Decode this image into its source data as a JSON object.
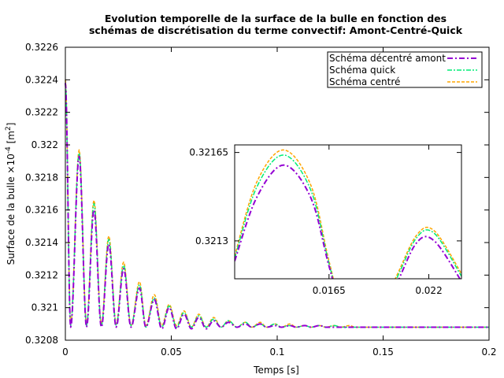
{
  "chart_data": {
    "type": "line",
    "title": [
      "Evolution temporelle de la surface de la bulle en fonction des",
      "schémas de discrétisation du terme convectif: Amont-Centré-Quick"
    ],
    "xlabel": "Temps [s]",
    "ylabel_base": "Surface de la bulle ×10",
    "ylabel_exp": "-4",
    "ylabel_unit_open": " [m",
    "ylabel_unit_exp": "2",
    "ylabel_unit_close": "]",
    "xlim": [
      0,
      0.2
    ],
    "ylim": [
      0.3208,
      0.3226
    ],
    "x_ticks": [
      {
        "value": 0,
        "label": "0"
      },
      {
        "value": 0.05,
        "label": "0.05"
      },
      {
        "value": 0.1,
        "label": "0.1"
      },
      {
        "value": 0.15,
        "label": "0.15"
      },
      {
        "value": 0.2,
        "label": "0.2"
      }
    ],
    "y_ticks": [
      {
        "value": 0.3208,
        "label": "0.3208"
      },
      {
        "value": 0.321,
        "label": "0.321"
      },
      {
        "value": 0.3212,
        "label": "0.3212"
      },
      {
        "value": 0.3214,
        "label": "0.3214"
      },
      {
        "value": 0.3216,
        "label": "0.3216"
      },
      {
        "value": 0.3218,
        "label": "0.3218"
      },
      {
        "value": 0.322,
        "label": "0.322"
      },
      {
        "value": 0.3222,
        "label": "0.3222"
      },
      {
        "value": 0.3224,
        "label": "0.3224"
      },
      {
        "value": 0.3226,
        "label": "0.3226"
      }
    ],
    "grid": false,
    "legend_position": "top-right",
    "series": [
      {
        "name": "Schéma décentré amont",
        "color": "#9400d3",
        "dash": "7,3,2,3",
        "final_value": 0.32088,
        "peaks": [
          [
            0.0065,
            0.32193
          ],
          [
            0.0135,
            0.3216
          ],
          [
            0.0205,
            0.32139
          ],
          [
            0.0275,
            0.32124
          ],
          [
            0.035,
            0.32112
          ],
          [
            0.042,
            0.32105
          ],
          [
            0.049,
            0.321
          ],
          [
            0.056,
            0.32096
          ],
          [
            0.063,
            0.32094
          ],
          [
            0.07,
            0.32092
          ],
          [
            0.077,
            0.32091
          ],
          [
            0.085,
            0.3209
          ],
          [
            0.092,
            0.3209
          ],
          [
            0.099,
            0.32089
          ],
          [
            0.106,
            0.32089
          ],
          [
            0.113,
            0.32089
          ],
          [
            0.12,
            0.32089
          ],
          [
            0.127,
            0.32088
          ],
          [
            0.134,
            0.32088
          ],
          [
            0.141,
            0.32088
          ]
        ],
        "troughs": [
          [
            0.0,
            0.32238
          ],
          [
            0.0025,
            0.32088
          ],
          [
            0.01,
            0.32088
          ],
          [
            0.017,
            0.32088
          ],
          [
            0.024,
            0.32088
          ],
          [
            0.031,
            0.32088
          ],
          [
            0.038,
            0.32088
          ],
          [
            0.0455,
            0.32087
          ],
          [
            0.0525,
            0.32087
          ],
          [
            0.0595,
            0.32087
          ],
          [
            0.0665,
            0.32087
          ],
          [
            0.0735,
            0.32088
          ],
          [
            0.081,
            0.32088
          ],
          [
            0.088,
            0.32088
          ],
          [
            0.095,
            0.32088
          ],
          [
            0.102,
            0.32088
          ],
          [
            0.109,
            0.32088
          ],
          [
            0.116,
            0.32088
          ],
          [
            0.123,
            0.32088
          ],
          [
            0.13,
            0.32088
          ],
          [
            0.137,
            0.32088
          ],
          [
            0.144,
            0.32088
          ],
          [
            0.2,
            0.32088
          ]
        ],
        "zoom_points": [
          [
            0.0113,
            0.32122
          ],
          [
            0.0125,
            0.32147
          ],
          [
            0.014,
            0.3216
          ],
          [
            0.0155,
            0.32147
          ],
          [
            0.0165,
            0.3212
          ],
          [
            0.0175,
            0.32096
          ],
          [
            0.0185,
            0.32096
          ],
          [
            0.02,
            0.3211
          ],
          [
            0.0213,
            0.32129
          ],
          [
            0.0223,
            0.3213
          ],
          [
            0.0238,
            0.32114
          ]
        ]
      },
      {
        "name": "Schéma quick",
        "color": "#00ee76",
        "dash": "6,2,2,2",
        "final_value": 0.32088,
        "peaks": [
          [
            0.0065,
            0.32195
          ],
          [
            0.0135,
            0.32164
          ],
          [
            0.0205,
            0.32142
          ],
          [
            0.0275,
            0.32126
          ],
          [
            0.035,
            0.32114
          ],
          [
            0.042,
            0.32106
          ],
          [
            0.049,
            0.32101
          ],
          [
            0.056,
            0.32097
          ],
          [
            0.063,
            0.32095
          ],
          [
            0.07,
            0.32093
          ],
          [
            0.077,
            0.32092
          ],
          [
            0.085,
            0.32091
          ],
          [
            0.092,
            0.3209
          ],
          [
            0.099,
            0.3209
          ],
          [
            0.106,
            0.32089
          ],
          [
            0.113,
            0.32089
          ],
          [
            0.12,
            0.32089
          ],
          [
            0.127,
            0.32089
          ],
          [
            0.134,
            0.32088
          ],
          [
            0.141,
            0.32088
          ]
        ],
        "troughs": [
          [
            0.0,
            0.32238
          ],
          [
            0.0025,
            0.32089
          ],
          [
            0.01,
            0.32089
          ],
          [
            0.017,
            0.32089
          ],
          [
            0.024,
            0.32089
          ],
          [
            0.031,
            0.32089
          ],
          [
            0.038,
            0.32088
          ],
          [
            0.0455,
            0.32088
          ],
          [
            0.0525,
            0.32088
          ],
          [
            0.0595,
            0.32088
          ],
          [
            0.0665,
            0.32088
          ],
          [
            0.0735,
            0.32088
          ],
          [
            0.081,
            0.32088
          ],
          [
            0.088,
            0.32088
          ],
          [
            0.095,
            0.32088
          ],
          [
            0.102,
            0.32088
          ],
          [
            0.109,
            0.32088
          ],
          [
            0.116,
            0.32088
          ],
          [
            0.123,
            0.32088
          ],
          [
            0.13,
            0.32088
          ],
          [
            0.137,
            0.32088
          ],
          [
            0.144,
            0.32088
          ],
          [
            0.2,
            0.32088
          ]
        ],
        "zoom_points": [
          [
            0.0113,
            0.32123
          ],
          [
            0.0125,
            0.32151
          ],
          [
            0.014,
            0.32164
          ],
          [
            0.0155,
            0.3215
          ],
          [
            0.0165,
            0.32121
          ],
          [
            0.0175,
            0.32096
          ],
          [
            0.0185,
            0.32096
          ],
          [
            0.02,
            0.32112
          ],
          [
            0.0213,
            0.32131
          ],
          [
            0.0223,
            0.32133
          ],
          [
            0.0238,
            0.32116
          ]
        ]
      },
      {
        "name": "Schéma centré",
        "color": "#ffa500",
        "dash": "4,2",
        "final_value": 0.32088,
        "peaks": [
          [
            0.0065,
            0.32197
          ],
          [
            0.0135,
            0.32166
          ],
          [
            0.0205,
            0.32144
          ],
          [
            0.0275,
            0.32128
          ],
          [
            0.035,
            0.32116
          ],
          [
            0.042,
            0.32108
          ],
          [
            0.049,
            0.32102
          ],
          [
            0.056,
            0.32098
          ],
          [
            0.063,
            0.32096
          ],
          [
            0.07,
            0.32094
          ],
          [
            0.077,
            0.32092
          ],
          [
            0.085,
            0.32091
          ],
          [
            0.092,
            0.32091
          ],
          [
            0.099,
            0.3209
          ],
          [
            0.106,
            0.3209
          ],
          [
            0.113,
            0.32089
          ],
          [
            0.12,
            0.32089
          ],
          [
            0.127,
            0.32089
          ],
          [
            0.134,
            0.32089
          ],
          [
            0.141,
            0.32088
          ]
        ],
        "troughs": [
          [
            0.0,
            0.3224
          ],
          [
            0.0025,
            0.3209
          ],
          [
            0.01,
            0.3209
          ],
          [
            0.017,
            0.3209
          ],
          [
            0.024,
            0.3209
          ],
          [
            0.031,
            0.32089
          ],
          [
            0.038,
            0.32089
          ],
          [
            0.0455,
            0.32089
          ],
          [
            0.0525,
            0.32089
          ],
          [
            0.0595,
            0.32088
          ],
          [
            0.0665,
            0.32088
          ],
          [
            0.0735,
            0.32088
          ],
          [
            0.081,
            0.32088
          ],
          [
            0.088,
            0.32088
          ],
          [
            0.095,
            0.32088
          ],
          [
            0.102,
            0.32088
          ],
          [
            0.109,
            0.32088
          ],
          [
            0.116,
            0.32088
          ],
          [
            0.123,
            0.32088
          ],
          [
            0.13,
            0.32088
          ],
          [
            0.137,
            0.32088
          ],
          [
            0.144,
            0.32088
          ],
          [
            0.2,
            0.32088
          ]
        ],
        "zoom_points": [
          [
            0.0113,
            0.32124
          ],
          [
            0.0125,
            0.32153
          ],
          [
            0.014,
            0.32166
          ],
          [
            0.0155,
            0.32152
          ],
          [
            0.0165,
            0.32122
          ],
          [
            0.0175,
            0.32096
          ],
          [
            0.0185,
            0.32096
          ],
          [
            0.02,
            0.32113
          ],
          [
            0.0213,
            0.32132
          ],
          [
            0.0223,
            0.32134
          ],
          [
            0.0238,
            0.32117
          ]
        ]
      }
    ],
    "inset": {
      "xlim": [
        0.0113,
        0.0238
      ],
      "ylim": [
        0.32115,
        0.32168
      ],
      "x_ticks": [
        {
          "value": 0.0165,
          "label": "0.0165"
        },
        {
          "value": 0.022,
          "label": "0.022"
        }
      ],
      "y_ticks": [
        {
          "value": 0.32165,
          "label": "0.32165"
        },
        {
          "value": 0.3213,
          "label": "0.3213"
        }
      ]
    }
  }
}
